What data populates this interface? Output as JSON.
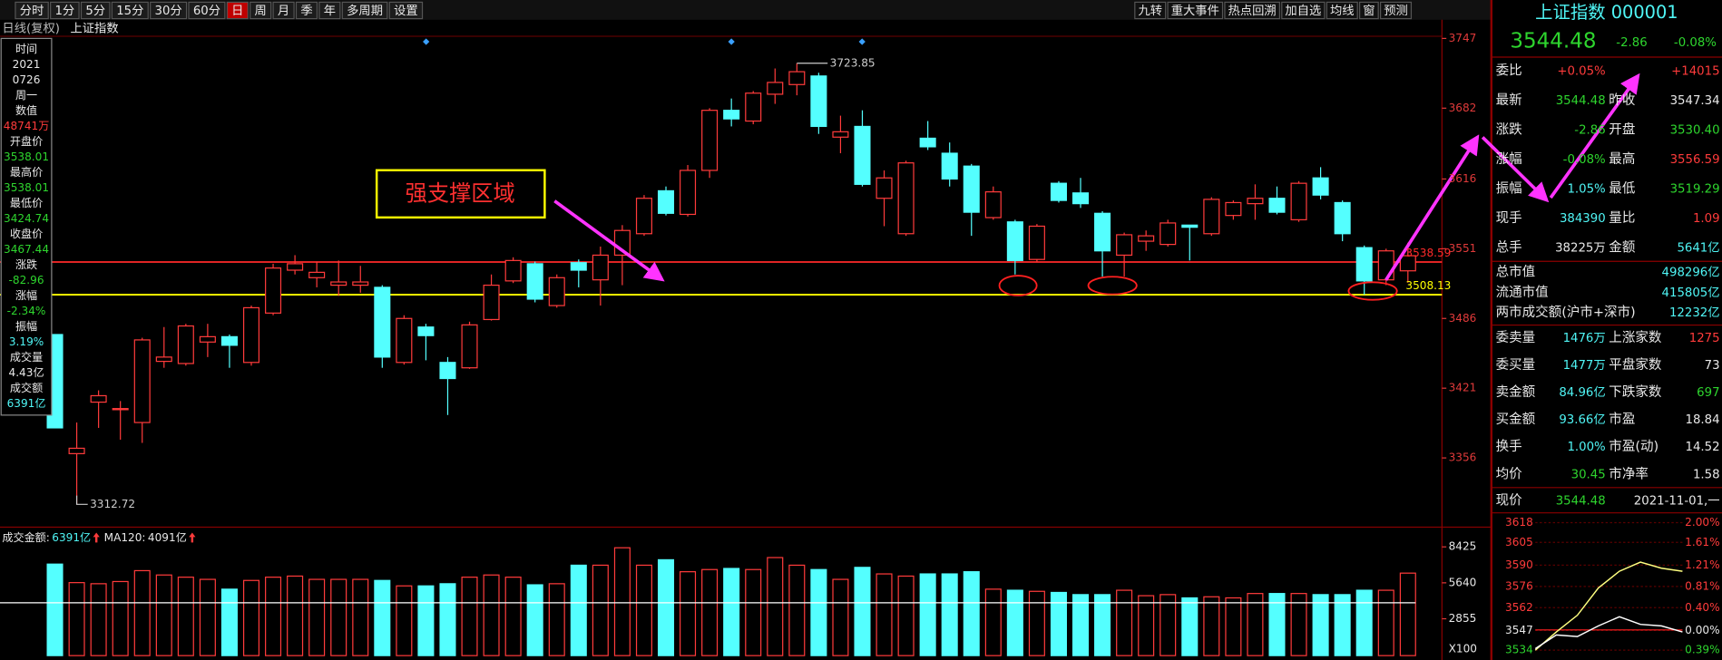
{
  "toolbar": {
    "left": [
      "分时",
      "1分",
      "5分",
      "15分",
      "30分",
      "60分",
      "日",
      "周",
      "月",
      "季",
      "年",
      "多周期",
      "设置"
    ],
    "active": 6,
    "right": [
      "九转",
      "重大事件",
      "热点回溯",
      "加自选",
      "均线",
      "窗",
      "预测"
    ]
  },
  "subtitle": [
    "日线(复权)",
    "上证指数"
  ],
  "info_panel": [
    {
      "text": "时间",
      "color": "#e8e8e8"
    },
    {
      "text": "2021",
      "color": "#e8e8e8"
    },
    {
      "text": "0726",
      "color": "#e8e8e8"
    },
    {
      "text": "周一",
      "color": "#e8e8e8"
    },
    {
      "text": "数值",
      "color": "#e8e8e8"
    },
    {
      "text": "48741万",
      "color": "#ff3b3b"
    },
    {
      "text": "开盘价",
      "color": "#e8e8e8"
    },
    {
      "text": "3538.01",
      "color": "#2ed52e"
    },
    {
      "text": "最高价",
      "color": "#e8e8e8"
    },
    {
      "text": "3538.01",
      "color": "#2ed52e"
    },
    {
      "text": "最低价",
      "color": "#e8e8e8"
    },
    {
      "text": "3424.74",
      "color": "#2ed52e"
    },
    {
      "text": "收盘价",
      "color": "#e8e8e8"
    },
    {
      "text": "3467.44",
      "color": "#2ed52e"
    },
    {
      "text": "涨跌",
      "color": "#e8e8e8"
    },
    {
      "text": "-82.96",
      "color": "#2ed52e"
    },
    {
      "text": "涨幅",
      "color": "#e8e8e8"
    },
    {
      "text": "-2.34%",
      "color": "#2ed52e"
    },
    {
      "text": "振幅",
      "color": "#e8e8e8"
    },
    {
      "text": "3.19%",
      "color": "#4ff5f5"
    },
    {
      "text": "成交量",
      "color": "#e8e8e8"
    },
    {
      "text": "4.43亿",
      "color": "#e8e8e8"
    },
    {
      "text": "成交额",
      "color": "#e8e8e8"
    },
    {
      "text": "6391亿",
      "color": "#4ff5f5"
    }
  ],
  "quote": {
    "title": "上证指数 000001",
    "price": "3544.48",
    "change": "-2.86",
    "pct": "-0.08%",
    "color": "#2ed52e",
    "rows": [
      {
        "label": "委比",
        "value": "+0.05%",
        "color": "#ff3b3b",
        "value2": "+14015",
        "color2": "#ff3b3b"
      },
      {
        "label": "最新",
        "value": "3544.48",
        "color": "#2ed52e",
        "label2": "昨收",
        "value2": "3547.34",
        "color2": "#e8e8e8"
      },
      {
        "label": "涨跌",
        "value": "-2.86",
        "color": "#2ed52e",
        "label2": "开盘",
        "value2": "3530.40",
        "color2": "#2ed52e"
      },
      {
        "label": "涨幅",
        "value": "-0.08%",
        "color": "#2ed52e",
        "label2": "最高",
        "value2": "3556.59",
        "color2": "#ff3b3b"
      },
      {
        "label": "振幅",
        "value": "1.05%",
        "color": "#4ff5f5",
        "label2": "最低",
        "value2": "3519.29",
        "color2": "#2ed52e"
      },
      {
        "label": "现手",
        "value": "384390",
        "color": "#4ff5f5",
        "label2": "量比",
        "value2": "1.09",
        "color2": "#ff3b3b"
      },
      {
        "label": "总手",
        "value": "38225万",
        "color": "#e8e8e8",
        "label2": "金额",
        "value2": "5641亿",
        "color2": "#4ff5f5"
      }
    ],
    "wide_rows": [
      {
        "label": "总市值",
        "value": "498296亿"
      },
      {
        "label": "流通市值",
        "value": "415805亿"
      },
      {
        "label": "两市成交额(沪市+深市)",
        "value": "12232亿"
      }
    ],
    "wide_color": "#4ff5f5",
    "rows2": [
      {
        "label": "委卖量",
        "value": "1476万",
        "color": "#4ff5f5",
        "label2": "上涨家数",
        "value2": "1275",
        "color2": "#ff3b3b"
      },
      {
        "label": "委买量",
        "value": "1477万",
        "color": "#4ff5f5",
        "label2": "平盘家数",
        "value2": "73",
        "color2": "#e8e8e8"
      },
      {
        "label": "卖金额",
        "value": "84.96亿",
        "color": "#4ff5f5",
        "label2": "下跌家数",
        "value2": "697",
        "color2": "#2ed52e"
      },
      {
        "label": "买金额",
        "value": "93.66亿",
        "color": "#4ff5f5",
        "label2": "市盈",
        "value2": "18.84",
        "color2": "#e8e8e8"
      },
      {
        "label": "换手",
        "value": "1.00%",
        "color": "#4ff5f5",
        "label2": "市盈(动)",
        "value2": "14.52",
        "color2": "#e8e8e8"
      },
      {
        "label": "均价",
        "value": "30.45",
        "color": "#2ed52e",
        "label2": "市净率",
        "value2": "1.58",
        "color2": "#e8e8e8"
      }
    ],
    "footer": {
      "label": "现价",
      "value": "3544.48",
      "color": "#2ed52e",
      "date": "2021-11-01,一"
    }
  },
  "chart_data": [
    {
      "type": "candlestick",
      "up_color": "#ff3b3b",
      "down_color": "#54ffff",
      "open": [
        3471,
        3360,
        3408,
        3402,
        3389,
        3446,
        3444,
        3464,
        3469,
        3445,
        3491,
        3531,
        3524,
        3517,
        3517,
        3515,
        3445,
        3478,
        3445,
        3440,
        3485,
        3521,
        3537,
        3498,
        3538,
        3522,
        3545,
        3565,
        3605,
        3583,
        3624,
        3680,
        3670,
        3695,
        3704,
        3712,
        3655,
        3665,
        3598,
        3565,
        3654,
        3640,
        3628,
        3580,
        3576,
        3541,
        3612,
        3603,
        3584,
        3545,
        3558,
        3555,
        3573,
        3565,
        3582,
        3593,
        3598,
        3578,
        3617,
        3594,
        3552,
        3522,
        3530.4
      ],
      "high": [
        3471,
        3389,
        3419,
        3409,
        3468,
        3478,
        3481,
        3481,
        3471,
        3498,
        3537,
        3545,
        3539,
        3540,
        3535,
        3517,
        3489,
        3481,
        3450,
        3483,
        3527,
        3543,
        3539,
        3527,
        3541,
        3553,
        3573,
        3601,
        3609,
        3629,
        3682,
        3691,
        3698,
        3719,
        3723.85,
        3715,
        3675,
        3680,
        3624,
        3633,
        3670,
        3650,
        3630,
        3609,
        3578,
        3574,
        3614,
        3617,
        3586,
        3566,
        3568,
        3578,
        3573,
        3599,
        3596,
        3611,
        3609,
        3614,
        3627,
        3596,
        3554,
        3551,
        3556.59
      ],
      "low": [
        3384,
        3312.72,
        3384,
        3373,
        3370,
        3440,
        3442,
        3450,
        3440,
        3442,
        3489,
        3527,
        3515,
        3507,
        3510,
        3440,
        3443,
        3447,
        3396,
        3439,
        3484,
        3519,
        3501,
        3496,
        3515,
        3498,
        3517,
        3563,
        3582,
        3581,
        3617,
        3665,
        3667,
        3686,
        3694,
        3658,
        3640,
        3609,
        3572,
        3563,
        3643,
        3609,
        3563,
        3578,
        3527,
        3539,
        3594,
        3589,
        3525,
        3525,
        3549,
        3553,
        3540,
        3563,
        3578,
        3578,
        3583,
        3576,
        3597,
        3558,
        3508.13,
        3517,
        3519.29
      ],
      "close": [
        3384,
        3365,
        3414,
        3402,
        3466,
        3450,
        3479,
        3469,
        3461,
        3496,
        3533,
        3537,
        3529,
        3520,
        3520,
        3450,
        3486,
        3470,
        3430,
        3480,
        3517,
        3540,
        3504,
        3524,
        3531,
        3545,
        3568,
        3598,
        3584,
        3624,
        3680,
        3672,
        3696,
        3706,
        3716,
        3665,
        3660,
        3611,
        3617,
        3631,
        3646,
        3616,
        3585,
        3604,
        3540,
        3572,
        3596,
        3593,
        3549,
        3564,
        3563,
        3575,
        3571,
        3597,
        3594,
        3598,
        3585,
        3612,
        3601,
        3565,
        3521,
        3549,
        3544.48
      ],
      "ylim": [
        3291.5,
        3764.4
      ],
      "yticks": [
        3747,
        3682,
        3616,
        3551,
        3486,
        3421,
        3356
      ],
      "tick_color": "#e03a3a",
      "support_lines": [
        {
          "value": 3538.59,
          "color": "#ff2a2a"
        },
        {
          "value": 3508.13,
          "color": "#ffff00"
        }
      ],
      "annotation": "强支撑区域"
    },
    {
      "type": "bar",
      "label": "成交金额:",
      "value_text": "6391亿",
      "ma_label": "MA120:",
      "ma_text": "4091亿",
      "ma_value": 4091,
      "unit_label": "X100",
      "values": [
        7090,
        5655,
        5570,
        5739,
        6583,
        6246,
        6077,
        5908,
        5148,
        5824,
        6077,
        6161,
        5908,
        5908,
        5908,
        5824,
        5402,
        5402,
        5570,
        6077,
        6246,
        6077,
        5486,
        5570,
        7005,
        7005,
        8356,
        7005,
        7427,
        6499,
        6668,
        6752,
        6668,
        7596,
        7005,
        6668,
        5908,
        6836,
        6330,
        6161,
        6330,
        6330,
        6499,
        5148,
        5064,
        4980,
        4895,
        4726,
        4726,
        5064,
        4642,
        4726,
        4473,
        4557,
        4473,
        4811,
        4811,
        4811,
        4726,
        4726,
        5064,
        5064,
        6391
      ],
      "ylim": [
        0,
        9530
      ],
      "yticks": [
        8425,
        5640,
        2855
      ]
    },
    {
      "type": "line",
      "ylim": [
        3529.7,
        3622.3
      ],
      "yticks": [
        3618,
        3605,
        3590,
        3576,
        3562,
        3547,
        3534
      ],
      "right_labels": [
        "2.00%",
        "1.61%",
        "1.21%",
        "0.81%",
        "0.40%",
        "0.00%",
        "0.39%"
      ],
      "baseline": 3547.34,
      "series": [
        {
          "color": "#ffff80",
          "values": [
            3534,
            3546,
            3557,
            3575,
            3586,
            3592,
            3588,
            3586
          ]
        },
        {
          "color": "#ffffff",
          "values": [
            3535,
            3544,
            3543,
            3550,
            3556,
            3551,
            3550,
            3546
          ]
        }
      ]
    }
  ]
}
